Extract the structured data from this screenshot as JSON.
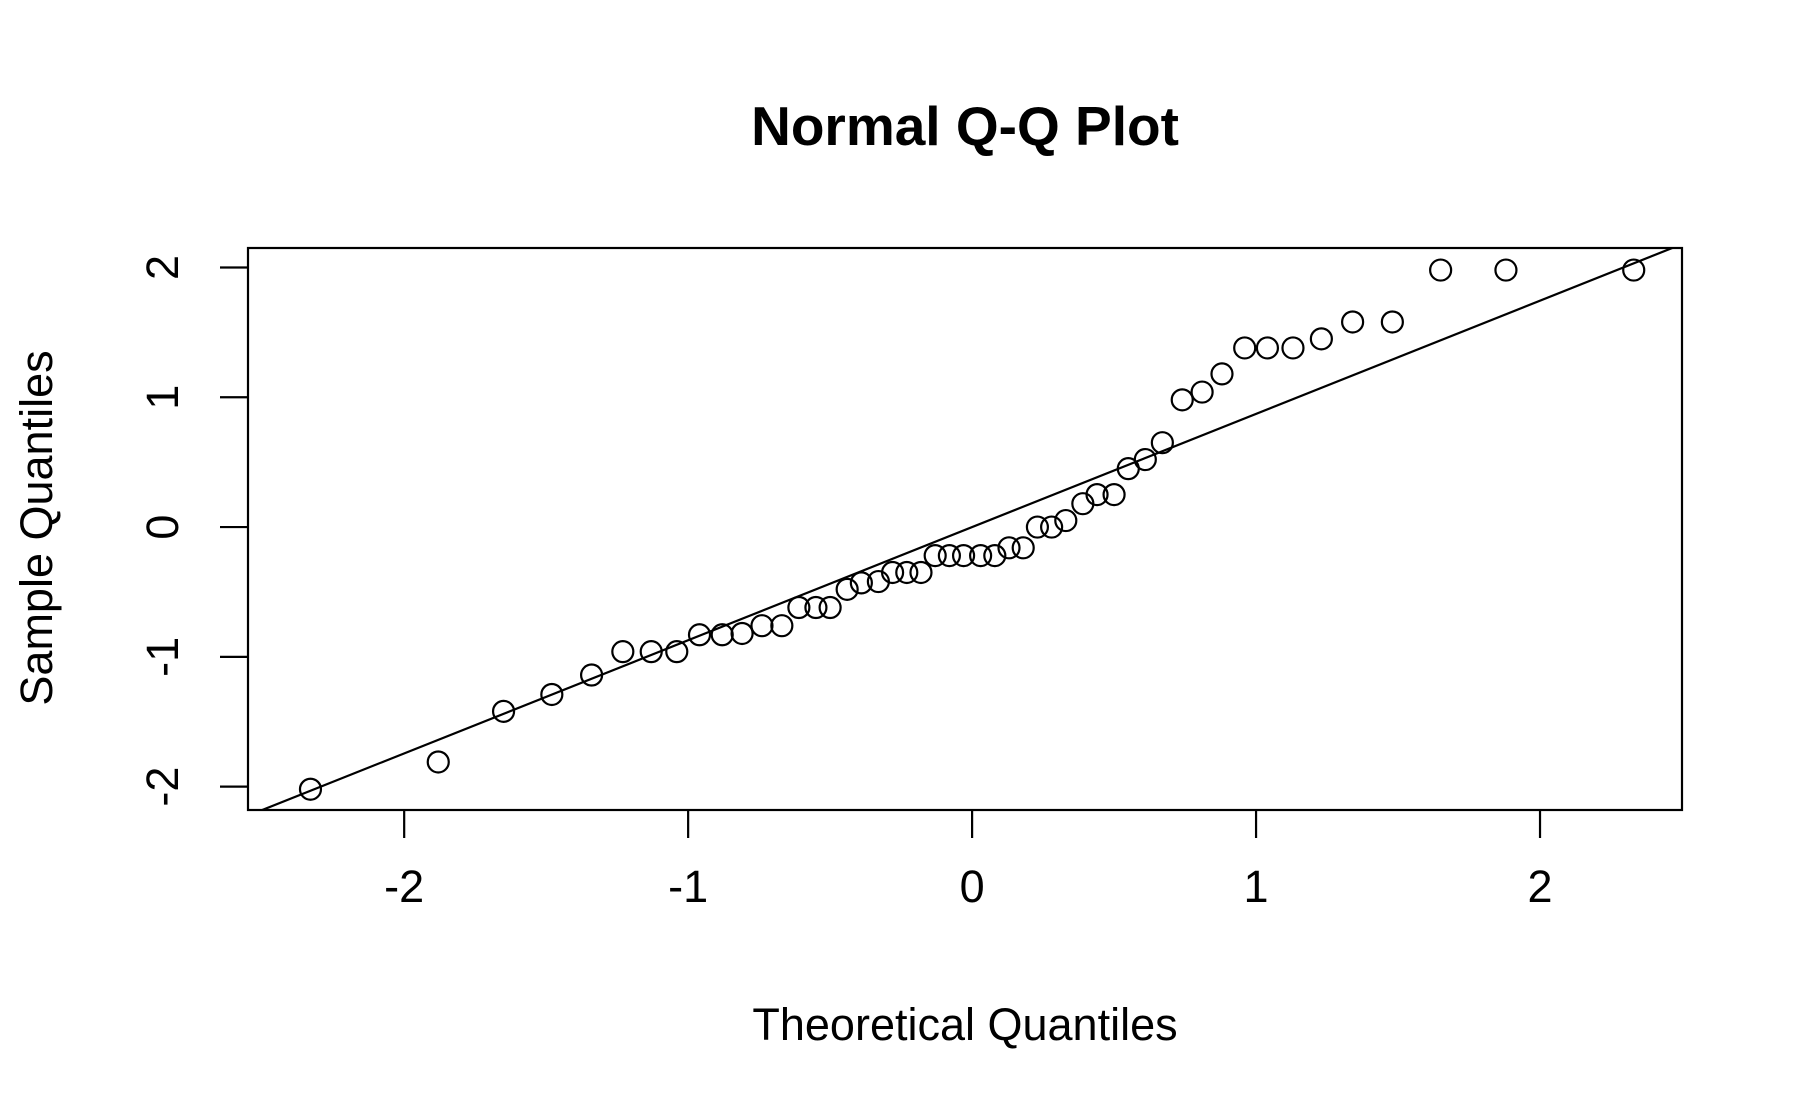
{
  "chart_data": {
    "type": "scatter",
    "title": "Normal Q-Q Plot",
    "xlabel": "Theoretical Quantiles",
    "ylabel": "Sample Quantiles",
    "xlim": [
      -2.55,
      2.5
    ],
    "ylim": [
      -2.18,
      2.15
    ],
    "xticks": [
      -2,
      -1,
      0,
      1,
      2
    ],
    "xtick_labels": [
      "-2",
      "-1",
      "0",
      "1",
      "2"
    ],
    "yticks": [
      -2,
      -1,
      0,
      1,
      2
    ],
    "ytick_labels": [
      "-2",
      "-1",
      "0",
      "1",
      "2"
    ],
    "grid": false,
    "legend": "none",
    "point_color": "#000000",
    "line_color": "#000000",
    "points": [
      [
        -2.33,
        -2.02
      ],
      [
        -1.88,
        -1.81
      ],
      [
        -1.65,
        -1.42
      ],
      [
        -1.48,
        -1.29
      ],
      [
        -1.34,
        -1.14
      ],
      [
        -1.23,
        -0.96
      ],
      [
        -1.13,
        -0.96
      ],
      [
        -1.04,
        -0.96
      ],
      [
        -0.96,
        -0.83
      ],
      [
        -0.88,
        -0.83
      ],
      [
        -0.81,
        -0.82
      ],
      [
        -0.74,
        -0.76
      ],
      [
        -0.67,
        -0.76
      ],
      [
        -0.61,
        -0.62
      ],
      [
        -0.55,
        -0.62
      ],
      [
        -0.5,
        -0.62
      ],
      [
        -0.44,
        -0.48
      ],
      [
        -0.39,
        -0.43
      ],
      [
        -0.33,
        -0.42
      ],
      [
        -0.28,
        -0.35
      ],
      [
        -0.23,
        -0.35
      ],
      [
        -0.18,
        -0.35
      ],
      [
        -0.13,
        -0.22
      ],
      [
        -0.08,
        -0.22
      ],
      [
        -0.03,
        -0.22
      ],
      [
        0.03,
        -0.22
      ],
      [
        0.08,
        -0.22
      ],
      [
        0.13,
        -0.16
      ],
      [
        0.18,
        -0.16
      ],
      [
        0.23,
        0.0
      ],
      [
        0.28,
        0.0
      ],
      [
        0.33,
        0.05
      ],
      [
        0.39,
        0.18
      ],
      [
        0.44,
        0.25
      ],
      [
        0.5,
        0.25
      ],
      [
        0.55,
        0.45
      ],
      [
        0.61,
        0.52
      ],
      [
        0.67,
        0.65
      ],
      [
        0.74,
        0.98
      ],
      [
        0.81,
        1.04
      ],
      [
        0.88,
        1.18
      ],
      [
        0.96,
        1.38
      ],
      [
        1.04,
        1.38
      ],
      [
        1.13,
        1.38
      ],
      [
        1.23,
        1.45
      ],
      [
        1.34,
        1.58
      ],
      [
        1.48,
        1.58
      ],
      [
        1.65,
        1.98
      ],
      [
        1.88,
        1.98
      ],
      [
        2.33,
        1.98
      ]
    ],
    "reference_line": {
      "slope": 0.872,
      "intercept": 0.0
    }
  }
}
